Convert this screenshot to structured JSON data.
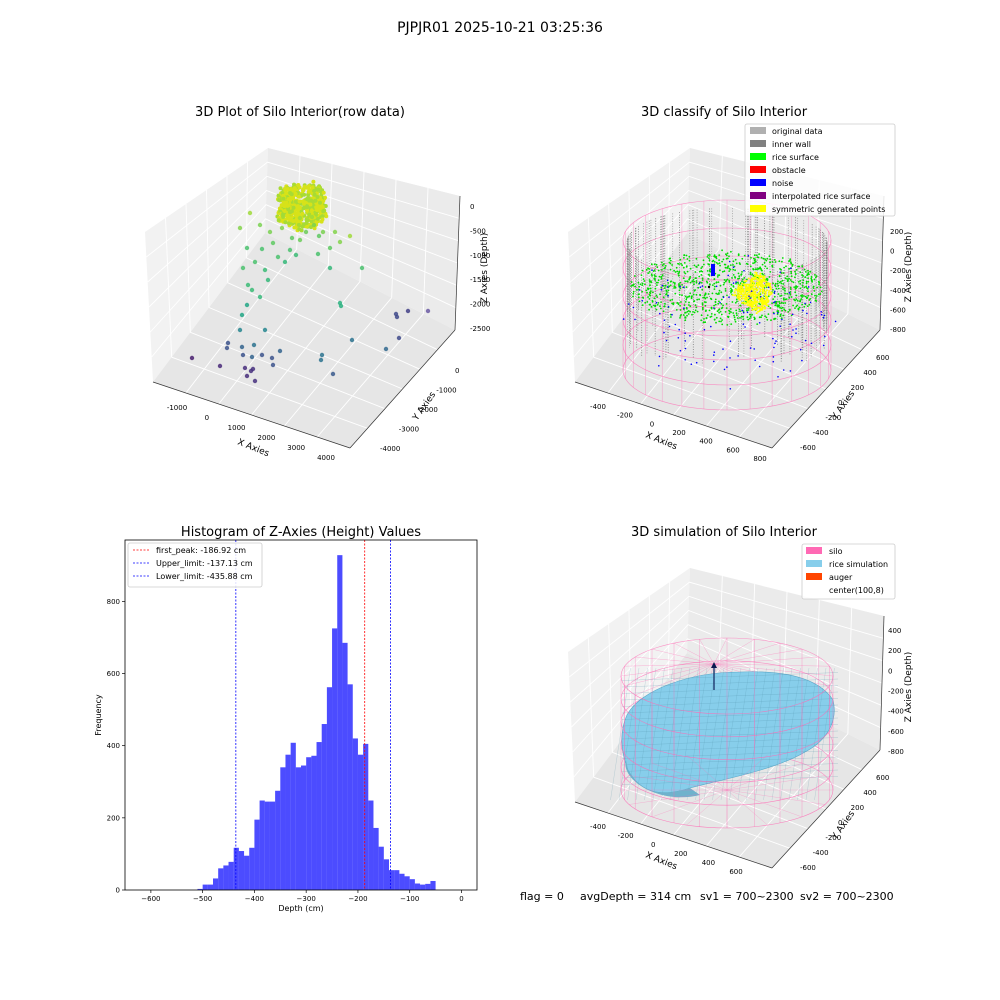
{
  "figure": {
    "suptitle": "PJPJR01 2025-10-21 03:25:36",
    "status_line": {
      "flag": "flag = 0",
      "avg_depth": "avgDepth = 314 cm",
      "sv1": "sv1 = 700~2300",
      "sv2": "sv2 = 700~2300"
    }
  },
  "chart_data": [
    {
      "type": "scatter",
      "projection": "3d",
      "title": "3D Plot of Silo Interior(row data)",
      "xlabel": "X Axies",
      "ylabel": "Y Axies",
      "zlabel": "Z Axies (Depth)",
      "x_ticks": [
        "-1000",
        "0",
        "1000",
        "2000",
        "3000",
        "4000"
      ],
      "y_ticks": [
        "0",
        "-1000",
        "-2000",
        "-3000",
        "-4000"
      ],
      "z_ticks": [
        "0",
        "-500",
        "-1000",
        "-1500",
        "-2000",
        "-2500"
      ],
      "colormap": "viridis",
      "grid": true
    },
    {
      "type": "scatter",
      "projection": "3d",
      "title": "3D classify of Silo Interior",
      "xlabel": "X Axies",
      "ylabel": "Y Axies",
      "zlabel": "Z Axies (Depth)",
      "x_ticks": [
        "-400",
        "-200",
        "0",
        "200",
        "400",
        "600",
        "800"
      ],
      "y_ticks": [
        "600",
        "400",
        "200",
        "0",
        "-200",
        "-400",
        "-600"
      ],
      "z_ticks": [
        "200",
        "0",
        "-200",
        "-400",
        "-600",
        "-800"
      ],
      "legend_position": "upper-right",
      "legend": [
        {
          "label": "original data",
          "color": "#b0b0b0"
        },
        {
          "label": "inner wall",
          "color": "#808080"
        },
        {
          "label": "rice surface",
          "color": "#00ff00"
        },
        {
          "label": "obstacle",
          "color": "#ff0000"
        },
        {
          "label": "noise",
          "color": "#0000ff"
        },
        {
          "label": "interpolated rice surface",
          "color": "#800080"
        },
        {
          "label": "symmetric generated points",
          "color": "#ffff00"
        }
      ],
      "silo_wire_color": "#ff69b4",
      "grid": true
    },
    {
      "type": "bar",
      "subtype": "histogram",
      "title": "Histogram of Z-Axies (Height) Values",
      "xlabel": "Depth (cm)",
      "ylabel": "Frequency",
      "xlim": [
        -650,
        30
      ],
      "ylim": [
        0,
        970
      ],
      "x_ticks": [
        -600,
        -500,
        -400,
        -300,
        -200,
        -100,
        0
      ],
      "y_ticks": [
        0,
        200,
        400,
        600,
        800
      ],
      "bar_color": "#0000ff",
      "bin_width": 10,
      "bins": [
        {
          "x0": -510,
          "value": 3
        },
        {
          "x0": -500,
          "value": 15
        },
        {
          "x0": -490,
          "value": 15
        },
        {
          "x0": -480,
          "value": 32
        },
        {
          "x0": -470,
          "value": 60
        },
        {
          "x0": -460,
          "value": 68
        },
        {
          "x0": -450,
          "value": 78
        },
        {
          "x0": -440,
          "value": 117
        },
        {
          "x0": -430,
          "value": 108
        },
        {
          "x0": -420,
          "value": 95
        },
        {
          "x0": -410,
          "value": 117
        },
        {
          "x0": -400,
          "value": 195
        },
        {
          "x0": -390,
          "value": 248
        },
        {
          "x0": -380,
          "value": 245
        },
        {
          "x0": -370,
          "value": 245
        },
        {
          "x0": -360,
          "value": 275
        },
        {
          "x0": -350,
          "value": 340
        },
        {
          "x0": -340,
          "value": 375
        },
        {
          "x0": -330,
          "value": 408
        },
        {
          "x0": -320,
          "value": 340
        },
        {
          "x0": -310,
          "value": 345
        },
        {
          "x0": -300,
          "value": 368
        },
        {
          "x0": -290,
          "value": 372
        },
        {
          "x0": -280,
          "value": 410
        },
        {
          "x0": -270,
          "value": 460
        },
        {
          "x0": -260,
          "value": 562
        },
        {
          "x0": -250,
          "value": 725
        },
        {
          "x0": -240,
          "value": 928
        },
        {
          "x0": -230,
          "value": 685
        },
        {
          "x0": -220,
          "value": 570
        },
        {
          "x0": -210,
          "value": 420
        },
        {
          "x0": -200,
          "value": 375
        },
        {
          "x0": -190,
          "value": 405
        },
        {
          "x0": -180,
          "value": 248
        },
        {
          "x0": -170,
          "value": 172
        },
        {
          "x0": -160,
          "value": 120
        },
        {
          "x0": -150,
          "value": 85
        },
        {
          "x0": -140,
          "value": 55
        },
        {
          "x0": -130,
          "value": 55
        },
        {
          "x0": -120,
          "value": 45
        },
        {
          "x0": -110,
          "value": 38
        },
        {
          "x0": -100,
          "value": 30
        },
        {
          "x0": -90,
          "value": 18
        },
        {
          "x0": -80,
          "value": 15
        },
        {
          "x0": -70,
          "value": 17
        },
        {
          "x0": -60,
          "value": 25
        }
      ],
      "vlines": [
        {
          "label": "first_peak: -186.92 cm",
          "x": -186.92,
          "color": "#ff0000"
        },
        {
          "label": "Upper_limit: -137.13 cm",
          "x": -137.13,
          "color": "#0000ff"
        },
        {
          "label": "Lower_limit: -435.88 cm",
          "x": -435.88,
          "color": "#0000ff"
        }
      ],
      "legend_position": "upper-left",
      "grid": false
    },
    {
      "type": "surface",
      "projection": "3d",
      "title": "3D simulation of Silo Interior",
      "xlabel": "X Axies",
      "ylabel": "Y Axies",
      "zlabel": "Z Axies (Depth)",
      "x_ticks": [
        "-400",
        "-200",
        "0",
        "200",
        "400",
        "600"
      ],
      "y_ticks": [
        "600",
        "400",
        "200",
        "0",
        "-200",
        "-400",
        "-600"
      ],
      "z_ticks": [
        "400",
        "200",
        "0",
        "-200",
        "-400",
        "-600",
        "-800"
      ],
      "legend_position": "upper-right",
      "legend": [
        {
          "label": "silo",
          "color": "#ff69b4"
        },
        {
          "label": "rice simulation",
          "color": "#87ceeb"
        },
        {
          "label": "auger",
          "color": "#ff4500"
        },
        {
          "label": "center(100,8)",
          "color": "#ffffff"
        }
      ],
      "grid": true
    }
  ]
}
